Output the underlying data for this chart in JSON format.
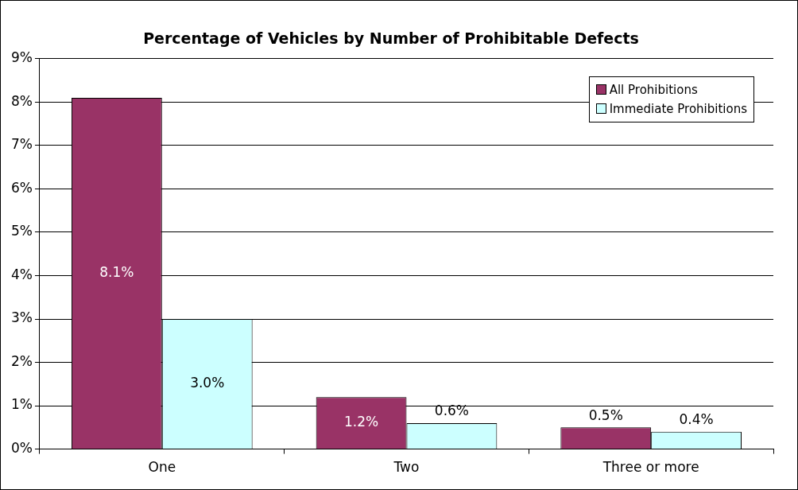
{
  "chart_data": {
    "type": "bar",
    "title": "Percentage of Vehicles by Number of Prohibitable Defects",
    "categories": [
      "One",
      "Two",
      "Three or more"
    ],
    "series": [
      {
        "name": "All Prohibitions",
        "color": "#993366",
        "values": [
          8.1,
          1.2,
          0.5
        ],
        "value_labels": [
          "8.1%",
          "1.2%",
          "0.5%"
        ]
      },
      {
        "name": "Immediate Prohibitions",
        "color": "#ccffff",
        "values": [
          3.0,
          0.6,
          0.4
        ],
        "value_labels": [
          "3.0%",
          "0.6%",
          "0.4%"
        ]
      }
    ],
    "ylim": [
      0,
      9
    ],
    "yticks": [
      {
        "value": 0,
        "label": "0%"
      },
      {
        "value": 1,
        "label": "1%"
      },
      {
        "value": 2,
        "label": "2%"
      },
      {
        "value": 3,
        "label": "3%"
      },
      {
        "value": 4,
        "label": "4%"
      },
      {
        "value": 5,
        "label": "5%"
      },
      {
        "value": 6,
        "label": "6%"
      },
      {
        "value": 7,
        "label": "7%"
      },
      {
        "value": 8,
        "label": "8%"
      },
      {
        "value": 9,
        "label": "9%"
      }
    ],
    "grid": "y",
    "legend": "top right"
  }
}
